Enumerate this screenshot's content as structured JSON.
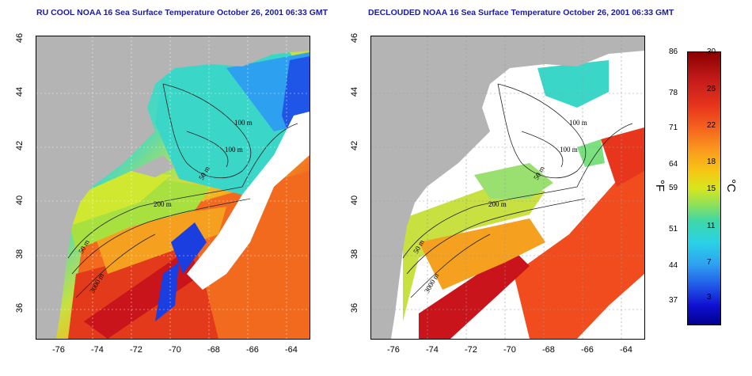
{
  "left_panel": {
    "title": "RU COOL NOAA 16 Sea Surface Temperature October 26, 2001 06:33 GMT"
  },
  "right_panel": {
    "title": "DECLOUDED NOAA 16 Sea Surface Temperature October 26, 2001 06:33 GMT"
  },
  "map": {
    "lat_ticks": [
      "46",
      "44",
      "42",
      "40",
      "38",
      "36"
    ],
    "lon_ticks": [
      "-76",
      "-74",
      "-72",
      "-70",
      "-68",
      "-66",
      "-64"
    ],
    "contour_labels": [
      "100 m",
      "100 m",
      "50 m",
      "200 m",
      "50 m",
      "3000 m"
    ]
  },
  "colorbar": {
    "fahrenheit_ticks": [
      "86",
      "78",
      "71",
      "64",
      "59",
      "51",
      "44",
      "37"
    ],
    "celsius_ticks": [
      "30",
      "26",
      "22",
      "18",
      "15",
      "11",
      "7",
      "3"
    ],
    "fahrenheit_unit": "°F",
    "celsius_unit": "°C"
  },
  "colors": {
    "land": "#b4b4b4",
    "title": "#1a1aa6"
  }
}
